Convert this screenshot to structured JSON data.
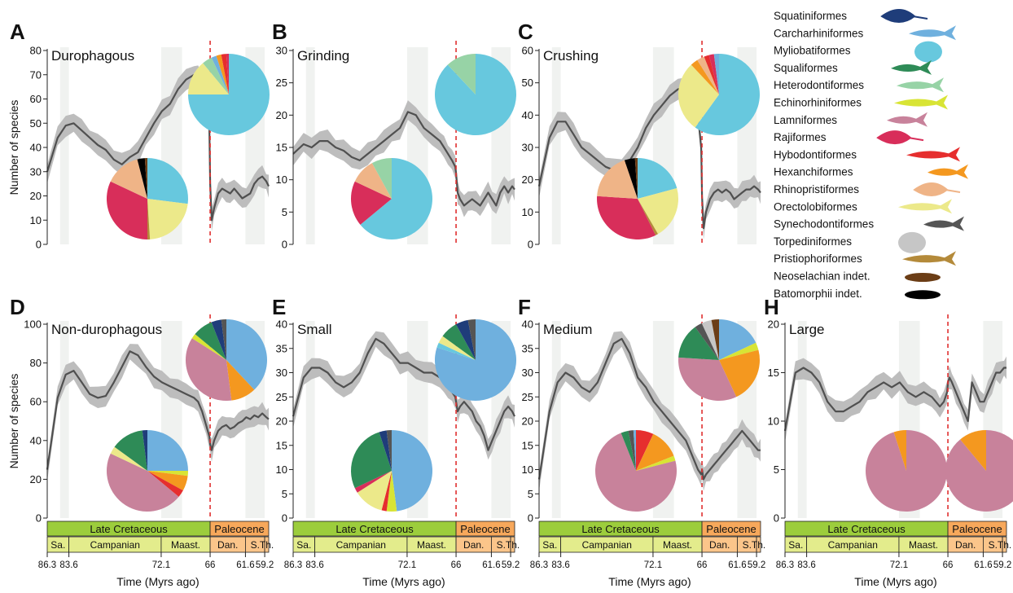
{
  "chart_data": [
    {
      "type": "line",
      "letter": "A",
      "title": "Durophagous",
      "ylabel": "Number of species",
      "ylim": [
        0,
        80
      ],
      "yticks": [
        0,
        10,
        20,
        30,
        40,
        50,
        60,
        70,
        80
      ],
      "x": [
        86.3,
        85,
        84,
        83,
        82,
        81,
        80,
        79,
        78,
        77,
        76,
        75,
        74,
        73,
        72,
        71,
        70,
        69,
        68,
        67.5,
        67,
        66.5,
        66.1,
        66,
        65.8,
        65.5,
        65,
        64.5,
        64,
        63.5,
        63,
        62.5,
        62,
        61.5,
        61,
        60.5,
        60,
        59.5,
        59,
        58.7
      ],
      "values": [
        30,
        44,
        49,
        50,
        47,
        44,
        41,
        39,
        35,
        33,
        36,
        38,
        44,
        50,
        55,
        58,
        64,
        68,
        70,
        69,
        67,
        60,
        48,
        25,
        10,
        15,
        21,
        23,
        22,
        21,
        23,
        21,
        19,
        20,
        21,
        25,
        27,
        28,
        26,
        24
      ],
      "pies": [
        {
          "slices": [
            [
              "Myliobatiformes",
              75
            ],
            [
              "Orectolobiformes",
              14
            ],
            [
              "Heterodontiformes",
              4
            ],
            [
              "Carcharhiniformes",
              2
            ],
            [
              "Hexanchiformes",
              2
            ],
            [
              "Hybodontiformes",
              2
            ],
            [
              "Rajiformes",
              1
            ]
          ]
        },
        {
          "slices": [
            [
              "Myliobatiformes",
              27
            ],
            [
              "Orectolobiformes",
              22
            ],
            [
              "Pristiophoriformes",
              1
            ],
            [
              "Rajiformes",
              32
            ],
            [
              "Rhinopristiformes",
              14
            ],
            [
              "Batomorphii indet.",
              3
            ],
            [
              "Neoselachian indet.",
              1
            ]
          ]
        }
      ]
    },
    {
      "type": "line",
      "letter": "B",
      "title": "Grinding",
      "ylim": [
        0,
        30
      ],
      "yticks": [
        0,
        5,
        10,
        15,
        20,
        25,
        30
      ],
      "x": [
        86.3,
        85,
        84,
        83,
        82,
        81,
        80,
        79,
        78,
        77,
        76,
        75,
        74,
        73,
        72,
        71,
        70,
        69,
        68,
        67.5,
        67,
        66.5,
        66.1,
        66,
        65.8,
        65.5,
        65,
        64.5,
        64,
        63.5,
        63,
        62.5,
        62,
        61.5,
        61,
        60.5,
        60,
        59.5,
        59,
        58.7
      ],
      "values": [
        14,
        15.5,
        15,
        16,
        16,
        15,
        14.5,
        13.5,
        13,
        14,
        15,
        16,
        17,
        18,
        20.5,
        20,
        18,
        17,
        16,
        15,
        14,
        13,
        12,
        11,
        8,
        7,
        6,
        6.5,
        7,
        6.5,
        6,
        7,
        8,
        7,
        6,
        8,
        9,
        8,
        9,
        8.5
      ],
      "pies": [
        {
          "slices": [
            [
              "Myliobatiformes",
              88
            ],
            [
              "Heterodontiformes",
              12
            ]
          ]
        },
        {
          "slices": [
            [
              "Myliobatiformes",
              64
            ],
            [
              "Rajiformes",
              18
            ],
            [
              "Rhinopristiformes",
              10
            ],
            [
              "Heterodontiformes",
              8
            ]
          ]
        }
      ]
    },
    {
      "type": "line",
      "letter": "C",
      "title": "Crushing",
      "ylim": [
        0,
        60
      ],
      "yticks": [
        0,
        10,
        20,
        30,
        40,
        50,
        60
      ],
      "x": [
        86.3,
        85,
        84,
        83,
        82,
        81,
        80,
        79,
        78,
        77,
        76,
        75,
        74,
        73,
        72,
        71,
        70,
        69,
        68,
        67.5,
        67,
        66.5,
        66.1,
        66,
        65.8,
        65.5,
        65,
        64.5,
        64,
        63.5,
        63,
        62.5,
        62,
        61.5,
        61,
        60.5,
        60,
        59.5,
        59,
        58.7
      ],
      "values": [
        18,
        33,
        38,
        38,
        34,
        30,
        28,
        26,
        24,
        23,
        24,
        26,
        30,
        36,
        40,
        43,
        46,
        48,
        49,
        49,
        47,
        40,
        30,
        15,
        5,
        10,
        14,
        16,
        17,
        16,
        17,
        16,
        14,
        15,
        16,
        17,
        17,
        18,
        17,
        16
      ],
      "pies": [
        {
          "slices": [
            [
              "Myliobatiformes",
              60
            ],
            [
              "Orectolobiformes",
              28
            ],
            [
              "Hexanchiformes",
              3
            ],
            [
              "Rhinopristiformes",
              3
            ],
            [
              "Hybodontiformes",
              2
            ],
            [
              "Rajiformes",
              2
            ],
            [
              "Carcharhiniformes",
              2
            ]
          ]
        },
        {
          "slices": [
            [
              "Myliobatiformes",
              20
            ],
            [
              "Orectolobiformes",
              20
            ],
            [
              "Pristiophoriformes",
              1
            ],
            [
              "Rajiformes",
              32
            ],
            [
              "Rhinopristiformes",
              18
            ],
            [
              "Batomorphii indet.",
              4
            ],
            [
              "Neoselachian indet.",
              1
            ]
          ]
        }
      ]
    },
    {
      "type": "line",
      "letter": "D",
      "title": "Non-durophagous",
      "ylabel": "Number of species",
      "ylim": [
        0,
        100
      ],
      "yticks": [
        0,
        20,
        40,
        60,
        80,
        100
      ],
      "x": [
        86.3,
        85,
        84,
        83,
        82,
        81,
        80,
        79,
        78,
        77,
        76,
        75,
        74,
        73,
        72,
        71,
        70,
        69,
        68,
        67.5,
        67,
        66.5,
        66.1,
        66,
        65.8,
        65.5,
        65,
        64.5,
        64,
        63.5,
        63,
        62.5,
        62,
        61.5,
        61,
        60.5,
        60,
        59.5,
        59,
        58.7
      ],
      "values": [
        25,
        62,
        74,
        76,
        70,
        64,
        62,
        63,
        70,
        78,
        86,
        84,
        78,
        73,
        70,
        68,
        66,
        64,
        62,
        60,
        55,
        48,
        42,
        38,
        35,
        40,
        45,
        47,
        48,
        46,
        47,
        49,
        50,
        52,
        51,
        53,
        52,
        54,
        52,
        51
      ],
      "pies": [
        {
          "slices": [
            [
              "Carcharhiniformes",
              38
            ],
            [
              "Hexanchiformes",
              10
            ],
            [
              "Lamniformes",
              36
            ],
            [
              "Echinorhiniformes",
              2
            ],
            [
              "Squaliformes",
              8
            ],
            [
              "Squatiniformes",
              4
            ],
            [
              "Synechodontiformes",
              2
            ]
          ]
        },
        {
          "slices": [
            [
              "Carcharhiniformes",
              25
            ],
            [
              "Echinorhiniformes",
              2
            ],
            [
              "Hexanchiformes",
              6
            ],
            [
              "Hybodontiformes",
              3
            ],
            [
              "Lamniformes",
              46
            ],
            [
              "Orectolobiformes",
              3
            ],
            [
              "Squaliformes",
              13
            ],
            [
              "Squatiniformes",
              2
            ]
          ]
        }
      ]
    },
    {
      "type": "line",
      "letter": "E",
      "title": "Small",
      "ylim": [
        0,
        40
      ],
      "yticks": [
        0,
        5,
        10,
        15,
        20,
        25,
        30,
        35,
        40
      ],
      "x": [
        86.3,
        85,
        84,
        83,
        82,
        81,
        80,
        79,
        78,
        77,
        76,
        75,
        74,
        73,
        72,
        71,
        70,
        69,
        68,
        67.5,
        67,
        66.5,
        66.1,
        66,
        65.8,
        65.5,
        65,
        64.5,
        64,
        63.5,
        63,
        62.5,
        62,
        61.5,
        61,
        60.5,
        60,
        59.5,
        59,
        58.7
      ],
      "values": [
        21,
        29,
        31,
        31,
        30,
        28,
        27,
        28,
        30,
        34,
        37,
        36,
        34,
        32,
        32,
        31,
        30,
        30,
        29,
        28,
        27,
        26,
        25,
        24,
        22,
        23,
        24,
        23,
        22,
        20,
        19,
        17,
        14,
        16,
        18,
        20,
        22,
        23,
        22,
        21
      ],
      "pies": [
        {
          "slices": [
            [
              "Carcharhiniformes",
              80
            ],
            [
              "Myliobatiformes",
              2
            ],
            [
              "Orectolobiformes",
              3
            ],
            [
              "Squaliformes",
              7
            ],
            [
              "Squatiniformes",
              5
            ],
            [
              "Synechodontiformes",
              3
            ]
          ]
        },
        {
          "slices": [
            [
              "Carcharhiniformes",
              48
            ],
            [
              "Echinorhiniformes",
              4
            ],
            [
              "Hybodontiformes",
              2
            ],
            [
              "Orectolobiformes",
              12
            ],
            [
              "Rajiformes",
              2
            ],
            [
              "Squaliformes",
              27
            ],
            [
              "Squatiniformes",
              3
            ],
            [
              "Synechodontiformes",
              2
            ]
          ]
        }
      ]
    },
    {
      "type": "line",
      "letter": "F",
      "title": "Medium",
      "ylim": [
        0,
        40
      ],
      "yticks": [
        0,
        5,
        10,
        15,
        20,
        25,
        30,
        35,
        40
      ],
      "x": [
        86.3,
        85,
        84,
        83,
        82,
        81,
        80,
        79,
        78,
        77,
        76,
        75,
        74,
        73,
        72,
        71,
        70,
        69,
        68,
        67.5,
        67,
        66.5,
        66.1,
        66,
        65.8,
        65.5,
        65,
        64.5,
        64,
        63.5,
        63,
        62.5,
        62,
        61.5,
        61,
        60.5,
        60,
        59.5,
        59,
        58.7
      ],
      "values": [
        8,
        22,
        28,
        30,
        29,
        27,
        26,
        28,
        32,
        36,
        37,
        34,
        29,
        27,
        24,
        22,
        20,
        18,
        16,
        14,
        12,
        10,
        9,
        10,
        8,
        9,
        10,
        11,
        12,
        13,
        14,
        15,
        16,
        17,
        18,
        17,
        16,
        15,
        14,
        14
      ],
      "pies": [
        {
          "slices": [
            [
              "Carcharhiniformes",
              18
            ],
            [
              "Echinorhiniformes",
              3
            ],
            [
              "Hexanchiformes",
              22
            ],
            [
              "Lamniformes",
              33
            ],
            [
              "Squaliformes",
              14
            ],
            [
              "Synechodontiformes",
              3
            ],
            [
              "Torpediniformes",
              4
            ],
            [
              "Neoselachian indet.",
              3
            ]
          ]
        },
        {
          "slices": [
            [
              "Hybodontiformes",
              7
            ],
            [
              "Hexanchiformes",
              12
            ],
            [
              "Echinorhiniformes",
              2
            ],
            [
              "Lamniformes",
              73
            ],
            [
              "Squaliformes",
              3
            ],
            [
              "Synechodontiformes",
              2
            ],
            [
              "Carcharhiniformes",
              1
            ]
          ]
        }
      ]
    },
    {
      "type": "line",
      "letter": "H",
      "title": "Large",
      "ylim": [
        0,
        20
      ],
      "yticks": [
        0,
        5,
        10,
        15,
        20
      ],
      "x": [
        86.3,
        85,
        84,
        83,
        82,
        81,
        80,
        79,
        78,
        77,
        76,
        75,
        74,
        73,
        72,
        71,
        70,
        69,
        68,
        67.5,
        67,
        66.5,
        66.1,
        66,
        65.8,
        65.5,
        65,
        64.5,
        64,
        63.5,
        63,
        62.5,
        62,
        61.5,
        61,
        60.5,
        60,
        59.5,
        59,
        58.7
      ],
      "values": [
        9,
        15,
        15.5,
        15,
        14,
        12,
        11,
        11,
        11.5,
        12,
        13,
        13.5,
        14,
        13.5,
        14,
        13,
        12.5,
        13,
        12.5,
        12,
        11.5,
        12,
        13,
        14,
        14.5,
        14,
        13,
        12,
        11,
        10,
        14,
        13,
        12,
        12,
        13,
        14,
        15,
        15,
        15.5,
        15.5
      ],
      "pies": [
        {
          "slices": [
            [
              "Lamniformes",
              95
            ],
            [
              "Hexanchiformes",
              5
            ]
          ]
        },
        {
          "slices": [
            [
              "Lamniformes",
              89
            ],
            [
              "Hexanchiformes",
              11
            ]
          ]
        }
      ]
    }
  ],
  "axis": {
    "xlabel": "Time (Myrs ago)",
    "xticks": [
      86.3,
      83.6,
      72.1,
      66,
      61.6,
      59.2
    ],
    "xtick_labels": [
      "86.3",
      "83.6",
      "72.1",
      "66",
      "61.6",
      "59.2"
    ],
    "boundary": 66,
    "eras": [
      {
        "label": "Late Cretaceous",
        "start": 86.3,
        "end": 66,
        "color": "#9ccd3c"
      },
      {
        "label": "Paleocene",
        "start": 66,
        "end": 58.7,
        "color": "#f7a85b"
      }
    ],
    "stages": [
      {
        "label": "Sa.",
        "start": 86.3,
        "end": 83.6,
        "color": "#e3ec8c"
      },
      {
        "label": "Campanian",
        "start": 83.6,
        "end": 72.1,
        "color": "#e3ec8c"
      },
      {
        "label": "Maast.",
        "start": 72.1,
        "end": 66,
        "color": "#e3ec8c"
      },
      {
        "label": "Dan.",
        "start": 66,
        "end": 61.6,
        "color": "#fbc58a"
      },
      {
        "label": "S.",
        "start": 61.6,
        "end": 59.2,
        "color": "#fbc58a"
      },
      {
        "label": "Th.",
        "start": 59.2,
        "end": 58.7,
        "color": "#fbc58a"
      }
    ],
    "shades": [
      [
        84.7,
        83.6
      ],
      [
        72.1,
        69.5
      ],
      [
        61.6,
        59.2
      ]
    ]
  },
  "legend": [
    {
      "name": "Squatiniformes",
      "color": "#1f3d7a",
      "icon": "squatiniformes-silhouette"
    },
    {
      "name": "Carcharhiniformes",
      "color": "#6fb0de",
      "icon": "carcharhiniformes-silhouette"
    },
    {
      "name": "Myliobatiformes",
      "color": "#67c8de",
      "icon": "myliobatiformes-silhouette"
    },
    {
      "name": "Squaliformes",
      "color": "#2e8b57",
      "icon": "squaliformes-silhouette"
    },
    {
      "name": "Heterodontiformes",
      "color": "#97d3a6",
      "icon": "heterodontiformes-silhouette"
    },
    {
      "name": "Echinorhiniformes",
      "color": "#d8e435",
      "icon": "echinorhiniformes-silhouette"
    },
    {
      "name": "Lamniformes",
      "color": "#c8829b",
      "icon": "lamniformes-silhouette"
    },
    {
      "name": "Rajiformes",
      "color": "#d82e5a",
      "icon": "rajiformes-silhouette"
    },
    {
      "name": "Hybodontiformes",
      "color": "#e62e2e",
      "icon": "hybodontiformes-silhouette"
    },
    {
      "name": "Hexanchiformes",
      "color": "#f4981f",
      "icon": "hexanchiformes-silhouette"
    },
    {
      "name": "Rhinopristiformes",
      "color": "#efb487",
      "icon": "rhinopristiformes-silhouette"
    },
    {
      "name": "Orectolobiformes",
      "color": "#ece98a",
      "icon": "orectolobiformes-silhouette"
    },
    {
      "name": "Synechodontiformes",
      "color": "#555555",
      "icon": "synechodontiformes-silhouette"
    },
    {
      "name": "Torpediniformes",
      "color": "#c6c6c6",
      "icon": "torpediniformes-silhouette"
    },
    {
      "name": "Pristiophoriformes",
      "color": "#b48a3a",
      "icon": "pristiophoriformes-silhouette"
    },
    {
      "name": "Neoselachian indet.",
      "color": "#6b3d16",
      "icon": "neoselachian-indet-silhouette"
    },
    {
      "name": "Batomorphii indet.",
      "color": "#000000",
      "icon": "batomorphii-indet-silhouette"
    }
  ],
  "colors": {
    "mean_line": "#505050",
    "ribbon": "#bdbdbd",
    "boundary_line": "#e03030",
    "shade": "#f0f2f0"
  }
}
